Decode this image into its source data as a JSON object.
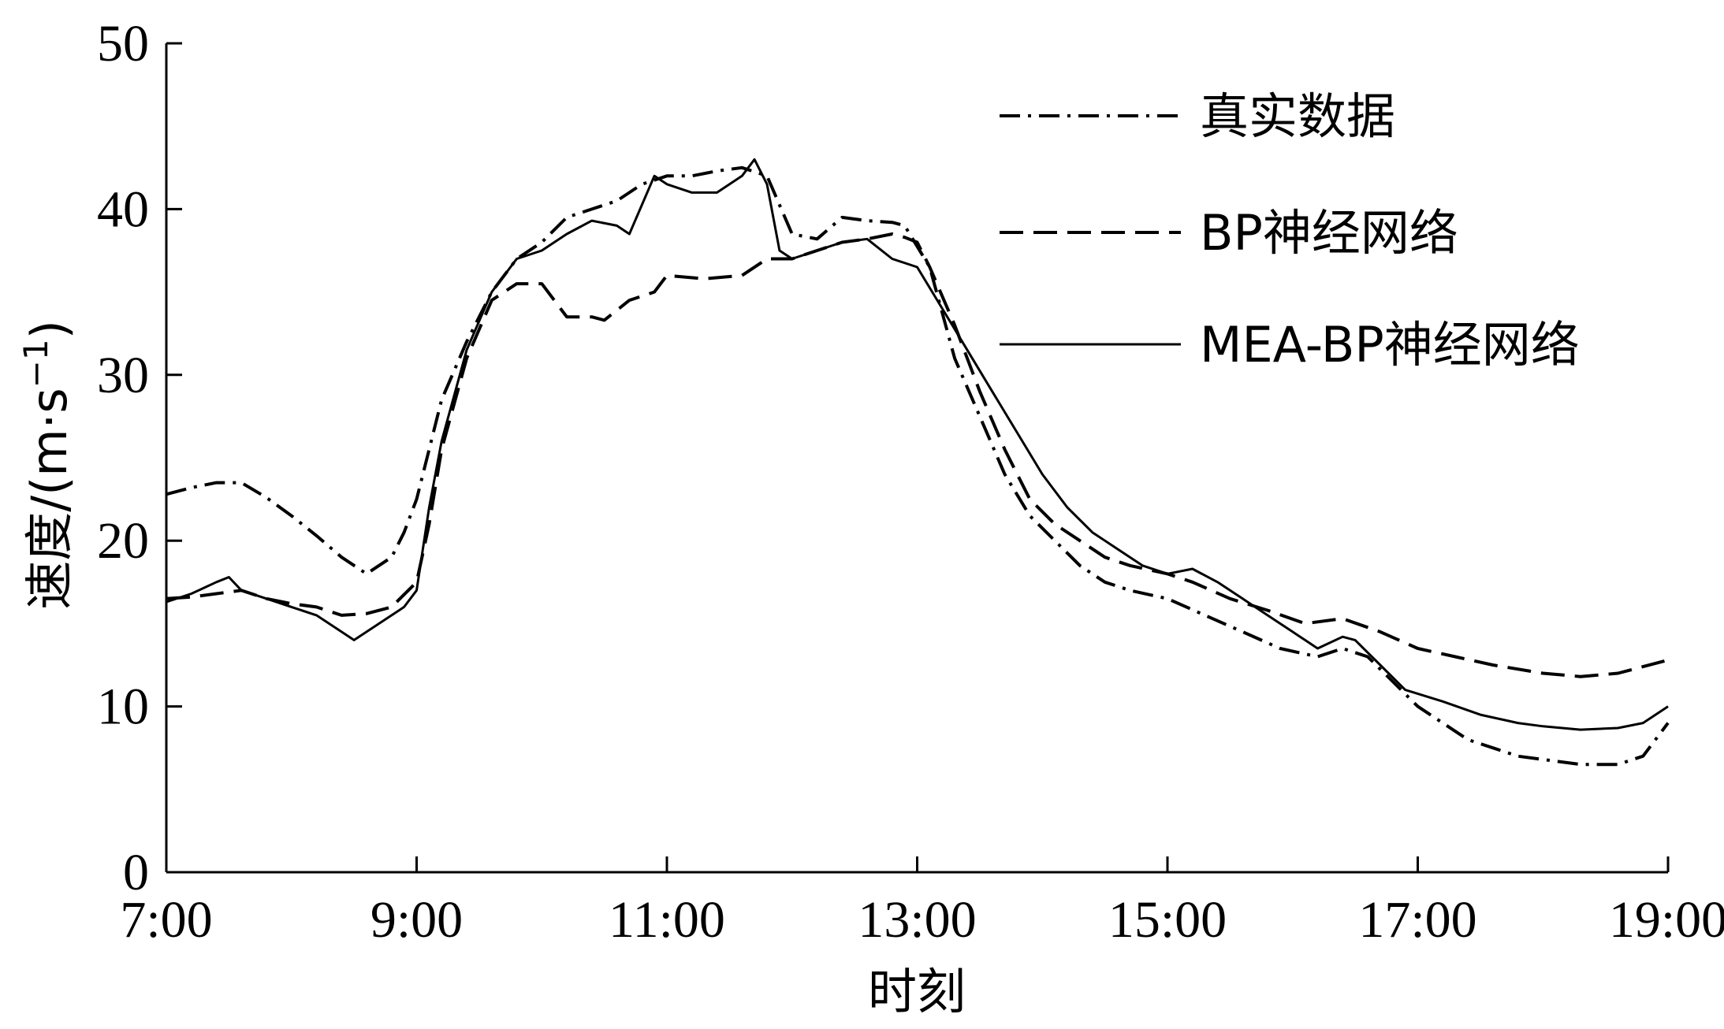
{
  "chart_data": {
    "type": "line",
    "xlabel": "时刻",
    "ylabel": "速度/(m·s",
    "ylabel_sup": "−1",
    "ylabel_close": ")",
    "xlim": [
      7,
      19
    ],
    "ylim": [
      0,
      50
    ],
    "x_ticks": [
      {
        "value": 7,
        "label": "7:00"
      },
      {
        "value": 9,
        "label": "9:00"
      },
      {
        "value": 11,
        "label": "11:00"
      },
      {
        "value": 13,
        "label": "13:00"
      },
      {
        "value": 15,
        "label": "15:00"
      },
      {
        "value": 17,
        "label": "17:00"
      },
      {
        "value": 19,
        "label": "19:00"
      }
    ],
    "y_ticks": [
      {
        "value": 0,
        "label": "0"
      },
      {
        "value": 10,
        "label": "10"
      },
      {
        "value": 20,
        "label": "20"
      },
      {
        "value": 30,
        "label": "30"
      },
      {
        "value": 40,
        "label": "40"
      },
      {
        "value": 50,
        "label": "50"
      }
    ],
    "legend_position": "top-right",
    "series": [
      {
        "name": "真实数据",
        "style": "dash-dot",
        "points": [
          [
            7.0,
            22.8
          ],
          [
            7.2,
            23.2
          ],
          [
            7.4,
            23.5
          ],
          [
            7.6,
            23.5
          ],
          [
            7.8,
            22.6
          ],
          [
            8.0,
            21.5
          ],
          [
            8.2,
            20.3
          ],
          [
            8.4,
            19.0
          ],
          [
            8.6,
            18.0
          ],
          [
            8.8,
            19.0
          ],
          [
            8.9,
            20.5
          ],
          [
            9.0,
            22.5
          ],
          [
            9.1,
            25.5
          ],
          [
            9.2,
            28.5
          ],
          [
            9.4,
            32.0
          ],
          [
            9.6,
            35.0
          ],
          [
            9.8,
            37.0
          ],
          [
            10.0,
            38.0
          ],
          [
            10.2,
            39.5
          ],
          [
            10.4,
            40.0
          ],
          [
            10.6,
            40.5
          ],
          [
            10.8,
            41.5
          ],
          [
            11.0,
            42.0
          ],
          [
            11.2,
            42.0
          ],
          [
            11.4,
            42.3
          ],
          [
            11.6,
            42.5
          ],
          [
            11.8,
            42.0
          ],
          [
            12.0,
            38.5
          ],
          [
            12.2,
            38.2
          ],
          [
            12.4,
            39.5
          ],
          [
            12.6,
            39.3
          ],
          [
            12.8,
            39.2
          ],
          [
            12.9,
            39.0
          ],
          [
            13.1,
            36.5
          ],
          [
            13.3,
            31.0
          ],
          [
            13.5,
            27.5
          ],
          [
            13.7,
            24.0
          ],
          [
            13.9,
            21.5
          ],
          [
            14.1,
            20.0
          ],
          [
            14.3,
            18.5
          ],
          [
            14.5,
            17.5
          ],
          [
            14.7,
            17.0
          ],
          [
            15.0,
            16.5
          ],
          [
            15.3,
            15.5
          ],
          [
            15.6,
            14.5
          ],
          [
            15.9,
            13.5
          ],
          [
            16.2,
            13.0
          ],
          [
            16.4,
            13.5
          ],
          [
            16.6,
            13.0
          ],
          [
            16.8,
            11.5
          ],
          [
            17.0,
            10.0
          ],
          [
            17.2,
            9.0
          ],
          [
            17.4,
            8.0
          ],
          [
            17.6,
            7.5
          ],
          [
            17.8,
            7.0
          ],
          [
            18.0,
            6.8
          ],
          [
            18.3,
            6.5
          ],
          [
            18.6,
            6.5
          ],
          [
            18.8,
            7.0
          ],
          [
            19.0,
            9.0
          ]
        ]
      },
      {
        "name": "BP神经网络",
        "style": "dashed",
        "points": [
          [
            7.0,
            16.5
          ],
          [
            7.2,
            16.6
          ],
          [
            7.4,
            16.8
          ],
          [
            7.6,
            17.0
          ],
          [
            7.8,
            16.5
          ],
          [
            8.0,
            16.2
          ],
          [
            8.2,
            16.0
          ],
          [
            8.4,
            15.5
          ],
          [
            8.6,
            15.6
          ],
          [
            8.8,
            16.0
          ],
          [
            9.0,
            17.5
          ],
          [
            9.1,
            21.0
          ],
          [
            9.2,
            25.5
          ],
          [
            9.4,
            31.0
          ],
          [
            9.6,
            34.5
          ],
          [
            9.8,
            35.5
          ],
          [
            10.0,
            35.5
          ],
          [
            10.2,
            33.5
          ],
          [
            10.4,
            33.5
          ],
          [
            10.5,
            33.3
          ],
          [
            10.7,
            34.5
          ],
          [
            10.9,
            35.0
          ],
          [
            11.0,
            36.0
          ],
          [
            11.3,
            35.8
          ],
          [
            11.6,
            36.0
          ],
          [
            11.8,
            37.0
          ],
          [
            12.0,
            37.0
          ],
          [
            12.2,
            37.5
          ],
          [
            12.4,
            38.0
          ],
          [
            12.6,
            38.2
          ],
          [
            12.8,
            38.5
          ],
          [
            12.9,
            38.3
          ],
          [
            13.0,
            38.0
          ],
          [
            13.1,
            36.5
          ],
          [
            13.3,
            33.0
          ],
          [
            13.5,
            29.0
          ],
          [
            13.7,
            25.5
          ],
          [
            13.9,
            22.5
          ],
          [
            14.1,
            21.0
          ],
          [
            14.3,
            20.0
          ],
          [
            14.5,
            19.0
          ],
          [
            14.7,
            18.5
          ],
          [
            15.0,
            18.0
          ],
          [
            15.2,
            17.5
          ],
          [
            15.5,
            16.5
          ],
          [
            15.8,
            15.8
          ],
          [
            16.1,
            15.0
          ],
          [
            16.4,
            15.3
          ],
          [
            16.7,
            14.5
          ],
          [
            17.0,
            13.5
          ],
          [
            17.3,
            13.0
          ],
          [
            17.6,
            12.5
          ],
          [
            18.0,
            12.0
          ],
          [
            18.3,
            11.8
          ],
          [
            18.6,
            12.0
          ],
          [
            19.0,
            12.8
          ]
        ]
      },
      {
        "name": "MEA-BP神经网络",
        "style": "solid",
        "points": [
          [
            7.0,
            16.3
          ],
          [
            7.2,
            16.8
          ],
          [
            7.4,
            17.5
          ],
          [
            7.5,
            17.8
          ],
          [
            7.6,
            17.0
          ],
          [
            7.8,
            16.5
          ],
          [
            8.0,
            16.0
          ],
          [
            8.2,
            15.5
          ],
          [
            8.4,
            14.5
          ],
          [
            8.5,
            14.0
          ],
          [
            8.7,
            15.0
          ],
          [
            8.9,
            16.0
          ],
          [
            9.0,
            17.0
          ],
          [
            9.1,
            22.0
          ],
          [
            9.2,
            26.0
          ],
          [
            9.4,
            31.5
          ],
          [
            9.6,
            35.0
          ],
          [
            9.8,
            37.0
          ],
          [
            10.0,
            37.5
          ],
          [
            10.2,
            38.5
          ],
          [
            10.4,
            39.3
          ],
          [
            10.6,
            39.0
          ],
          [
            10.7,
            38.5
          ],
          [
            10.9,
            42.0
          ],
          [
            11.0,
            41.5
          ],
          [
            11.2,
            41.0
          ],
          [
            11.4,
            41.0
          ],
          [
            11.6,
            42.0
          ],
          [
            11.7,
            43.0
          ],
          [
            11.8,
            41.5
          ],
          [
            11.9,
            37.5
          ],
          [
            12.0,
            37.0
          ],
          [
            12.2,
            37.5
          ],
          [
            12.4,
            38.0
          ],
          [
            12.6,
            38.2
          ],
          [
            12.8,
            37.0
          ],
          [
            13.0,
            36.5
          ],
          [
            13.2,
            34.0
          ],
          [
            13.4,
            31.5
          ],
          [
            13.6,
            29.0
          ],
          [
            13.8,
            26.5
          ],
          [
            14.0,
            24.0
          ],
          [
            14.2,
            22.0
          ],
          [
            14.4,
            20.5
          ],
          [
            14.6,
            19.5
          ],
          [
            14.8,
            18.5
          ],
          [
            15.0,
            18.0
          ],
          [
            15.2,
            18.3
          ],
          [
            15.4,
            17.5
          ],
          [
            15.6,
            16.5
          ],
          [
            15.8,
            15.5
          ],
          [
            16.0,
            14.5
          ],
          [
            16.2,
            13.5
          ],
          [
            16.4,
            14.2
          ],
          [
            16.5,
            14.0
          ],
          [
            16.7,
            12.5
          ],
          [
            16.9,
            11.0
          ],
          [
            17.2,
            10.3
          ],
          [
            17.5,
            9.5
          ],
          [
            17.8,
            9.0
          ],
          [
            18.0,
            8.8
          ],
          [
            18.3,
            8.6
          ],
          [
            18.6,
            8.7
          ],
          [
            18.8,
            9.0
          ],
          [
            19.0,
            10.0
          ]
        ]
      }
    ]
  }
}
